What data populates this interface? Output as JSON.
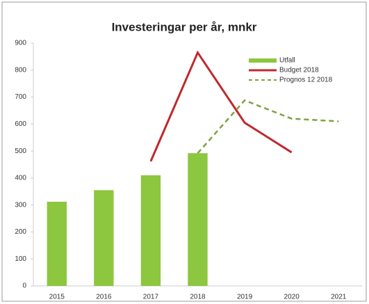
{
  "chart_data": {
    "type": "bar",
    "title": "Investeringar per år, mnkr",
    "categories": [
      "2015",
      "2016",
      "2017",
      "2018",
      "2019",
      "2020",
      "2021"
    ],
    "series": [
      {
        "name": "Utfall",
        "type": "bar",
        "color": "#8dc63f",
        "values": [
          312,
          355,
          410,
          492,
          null,
          null,
          null
        ]
      },
      {
        "name": "Budget 2018",
        "type": "line",
        "color": "#c0282d",
        "dashed": false,
        "values": [
          null,
          null,
          462,
          865,
          605,
          495,
          null
        ]
      },
      {
        "name": "Prognos 12 2018",
        "type": "line",
        "color": "#7fa040",
        "dashed": true,
        "values": [
          null,
          null,
          null,
          492,
          688,
          620,
          610
        ]
      }
    ],
    "ylim": [
      0,
      900
    ],
    "yticks": [
      0,
      100,
      200,
      300,
      400,
      500,
      600,
      700,
      800,
      900
    ],
    "grid": false,
    "legend": "top-right"
  }
}
